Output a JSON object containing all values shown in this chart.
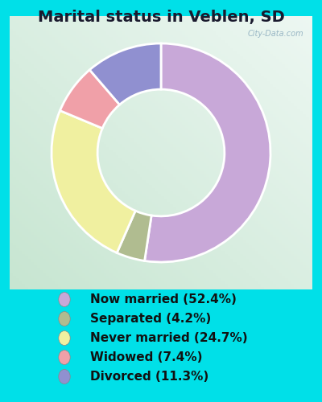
{
  "title": "Marital status in Veblen, SD",
  "slices": [
    52.4,
    4.2,
    24.7,
    7.4,
    11.3
  ],
  "colors": [
    "#c8a8d8",
    "#b0bc90",
    "#f0f0a0",
    "#f0a0a8",
    "#9090d0"
  ],
  "labels": [
    "Now married (52.4%)",
    "Separated (4.2%)",
    "Never married (24.7%)",
    "Widowed (7.4%)",
    "Divorced (11.3%)"
  ],
  "bg_outer": "#00e0e8",
  "bg_chart_top": "#e8f8f0",
  "bg_chart_bottom": "#c8e8d0",
  "title_color": "#1a1a2e",
  "title_fontsize": 14,
  "legend_fontsize": 11,
  "watermark": "City-Data.com",
  "donut_width": 0.42,
  "start_angle": 90
}
